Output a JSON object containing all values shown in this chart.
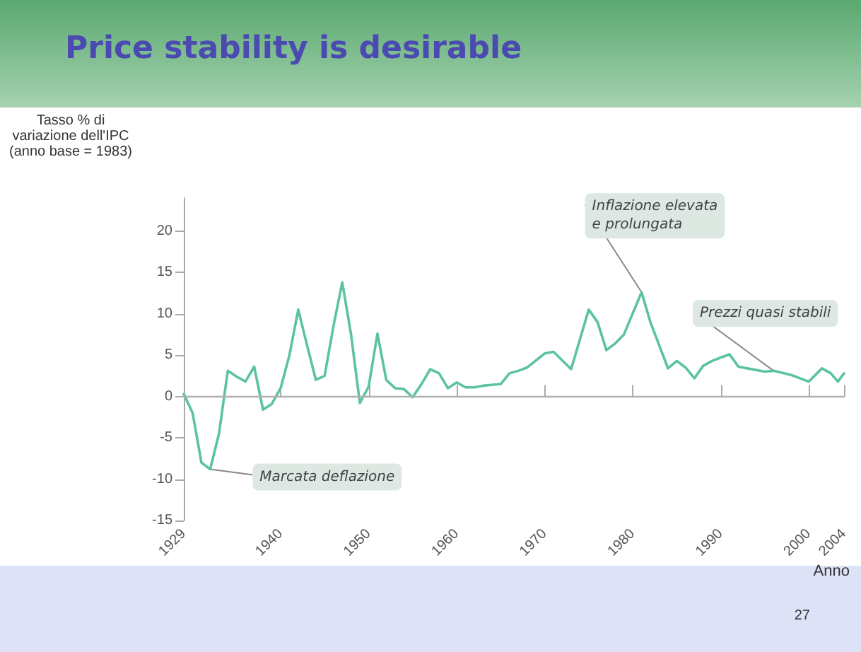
{
  "chart_data": {
    "type": "line",
    "title": "Price stability is desirable",
    "ylabel": "Tasso % di variazione dell'IPC (anno base = 1983)",
    "xlabel": "Anno",
    "x": [
      1929,
      1930,
      1931,
      1932,
      1933,
      1934,
      1935,
      1936,
      1937,
      1938,
      1939,
      1940,
      1941,
      1942,
      1943,
      1944,
      1945,
      1946,
      1947,
      1948,
      1949,
      1950,
      1951,
      1952,
      1953,
      1954,
      1955,
      1956,
      1957,
      1958,
      1959,
      1960,
      1961,
      1962,
      1963,
      1964,
      1965,
      1966,
      1967,
      1968,
      1970,
      1971,
      1973,
      1975,
      1976,
      1977,
      1978,
      1979,
      1981,
      1982,
      1984,
      1985,
      1986,
      1987,
      1988,
      1989,
      1991,
      1992,
      1993,
      1995,
      1996,
      1998,
      2000,
      2001.5,
      2002.5,
      2003.3,
      2004
    ],
    "series": [
      {
        "color": "#5cc3a0",
        "values": [
          0.3,
          -2,
          -8,
          -8.8,
          -4.5,
          3.1,
          2.4,
          1.8,
          3.6,
          -1.6,
          -0.9,
          1,
          5,
          10.5,
          6.2,
          2,
          2.5,
          8.5,
          13.8,
          7.5,
          -0.8,
          1.2,
          7.6,
          2,
          1,
          0.9,
          -0.1,
          1.5,
          3.3,
          2.8,
          1,
          1.7,
          1.1,
          1.1,
          1.3,
          1.4,
          1.5,
          2.8,
          3.1,
          3.5,
          5.2,
          5.4,
          3.3,
          10.5,
          9,
          5.6,
          6.4,
          7.5,
          12.6,
          9,
          3.4,
          4.3,
          3.5,
          2.2,
          3.7,
          4.3,
          5.1,
          3.6,
          3.4,
          3,
          3.1,
          2.6,
          1.8,
          3.4,
          2.8,
          1.8,
          2.8
        ]
      }
    ],
    "xlim": [
      1929,
      2004
    ],
    "xticks": [
      1929,
      1940,
      1950,
      1960,
      1970,
      1980,
      1990,
      2000,
      2004
    ],
    "ylim": [
      -15,
      24
    ],
    "yticks": [
      -15,
      -10,
      -5,
      0,
      5,
      10,
      15,
      20
    ],
    "ref_lines": [
      {
        "axis": "y",
        "value": 0,
        "color": "#b0b0b0"
      }
    ],
    "grid": false,
    "marker": "none",
    "line_style": "solid",
    "annotations": [
      {
        "text": "Marcata deflazione",
        "x": 1932,
        "y": -8.8
      },
      {
        "text": "Inflazione elevata\ne prolungata",
        "x": 1981,
        "y": 12.6
      },
      {
        "text": "Prezzi quasi stabili",
        "x": 1996,
        "y": 3.1
      },
      "27"
    ]
  }
}
